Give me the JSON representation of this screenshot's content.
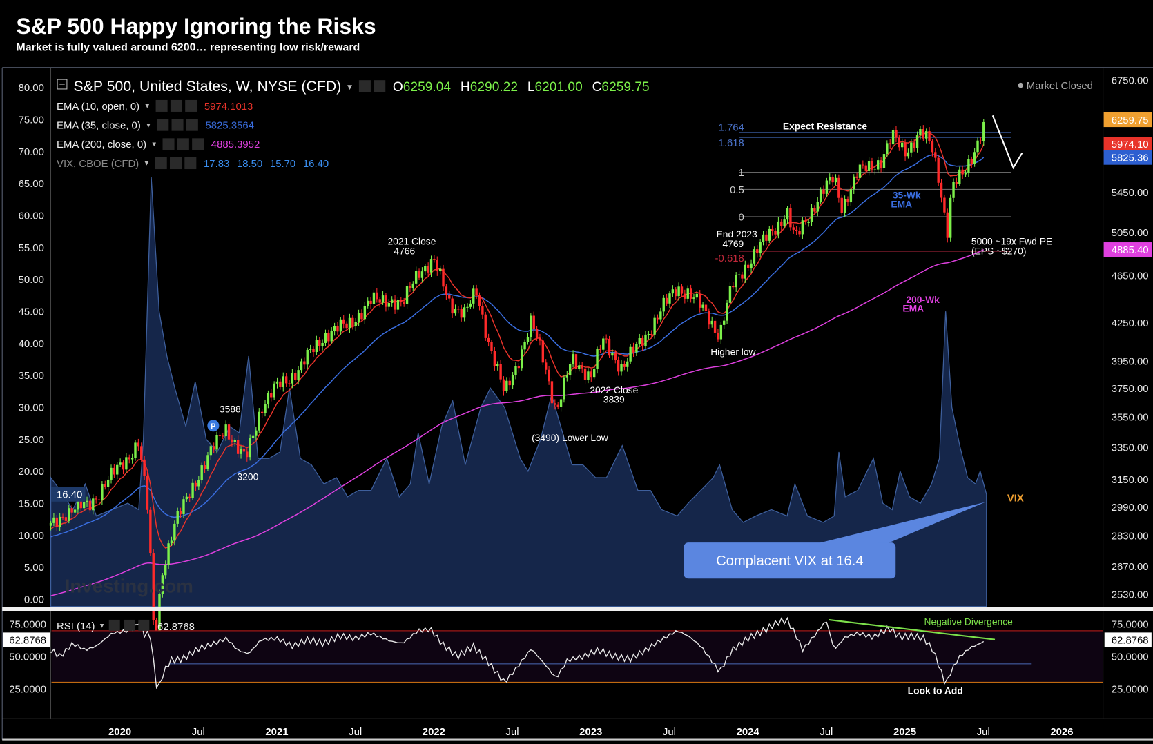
{
  "header": {
    "title": "S&P 500 Happy Ignoring the Risks",
    "subtitle": "Market is fully valued around 6200… representing low risk/reward"
  },
  "legend": {
    "symbol": "S&P 500, United States, W, NYSE (CFD)",
    "ohlc": {
      "o_label": "O",
      "o": "6259.04",
      "h_label": "H",
      "h": "6290.22",
      "l_label": "L",
      "l": "6201.00",
      "c_label": "C",
      "c": "6259.75"
    },
    "indicators": [
      {
        "label": "EMA (10, open, 0)",
        "value": "5974.1013",
        "color": "#e8332a"
      },
      {
        "label": "EMA (35, close, 0)",
        "value": "5825.3564",
        "color": "#3a6ee0"
      },
      {
        "label": "EMA (200, close, 0)",
        "value": "4885.3952",
        "color": "#e040e0"
      }
    ],
    "vix": {
      "label": "VIX, CBOE (CFD)",
      "values": [
        "17.83",
        "18.50",
        "15.70",
        "16.40"
      ]
    },
    "market_status": "Market Closed",
    "rsi_label": "RSI (14)",
    "rsi_value": "62.8768"
  },
  "chart_data": {
    "type": "candlestick",
    "title": "S&P 500 Happy Ignoring the Risks",
    "x_ticks": [
      {
        "t": 2020.0,
        "label": "2020",
        "major": true
      },
      {
        "t": 2020.5,
        "label": "Jul",
        "major": false
      },
      {
        "t": 2021.0,
        "label": "2021",
        "major": true
      },
      {
        "t": 2021.5,
        "label": "Jul",
        "major": false
      },
      {
        "t": 2022.0,
        "label": "2022",
        "major": true
      },
      {
        "t": 2022.5,
        "label": "Jul",
        "major": false
      },
      {
        "t": 2023.0,
        "label": "2023",
        "major": true
      },
      {
        "t": 2023.5,
        "label": "Jul",
        "major": false
      },
      {
        "t": 2024.0,
        "label": "2024",
        "major": true
      },
      {
        "t": 2024.5,
        "label": "Jul",
        "major": false
      },
      {
        "t": 2025.0,
        "label": "2025",
        "major": true
      },
      {
        "t": 2025.5,
        "label": "Jul",
        "major": false
      },
      {
        "t": 2026.0,
        "label": "2026",
        "major": true
      }
    ],
    "price_axis": {
      "scale": "log",
      "range": [
        2460,
        6800
      ],
      "ticks": [
        "6750.00",
        "5450.00",
        "5050.00",
        "4650.00",
        "4250.00",
        "3950.00",
        "3750.00",
        "3550.00",
        "3350.00",
        "3150.00",
        "2990.00",
        "2830.00",
        "2670.00",
        "2530.00"
      ]
    },
    "price_markers": [
      {
        "value": "6259.75",
        "color": "#f0a030"
      },
      {
        "value": "5974.10",
        "color": "#e8332a"
      },
      {
        "value": "5825.36",
        "color": "#2d5fd0"
      },
      {
        "value": "4885.40",
        "color": "#e040e0"
      }
    ],
    "vix_axis": {
      "range": [
        0,
        80
      ],
      "ticks": [
        "80.00",
        "75.00",
        "70.00",
        "65.00",
        "60.00",
        "55.00",
        "50.00",
        "45.00",
        "40.00",
        "35.00",
        "30.00",
        "25.00",
        "20.00",
        "15.00",
        "10.00",
        "5.00",
        "0.00"
      ],
      "marker": "16.40"
    },
    "rsi_axis": {
      "range": [
        15,
        85
      ],
      "ticks": [
        "75.0000",
        "50.0000",
        "25.0000"
      ],
      "marker": "62.8768",
      "overbought": 70,
      "oversold": 30
    },
    "price_path": [
      [
        2019.56,
        2880
      ],
      [
        2019.65,
        2960
      ],
      [
        2019.8,
        3000
      ],
      [
        2020.0,
        3230
      ],
      [
        2020.12,
        3380
      ],
      [
        2020.18,
        2950
      ],
      [
        2020.22,
        2300
      ],
      [
        2020.27,
        2650
      ],
      [
        2020.35,
        2880
      ],
      [
        2020.45,
        3100
      ],
      [
        2020.55,
        3250
      ],
      [
        2020.67,
        3500
      ],
      [
        2020.75,
        3330
      ],
      [
        2020.8,
        3270
      ],
      [
        2020.9,
        3620
      ],
      [
        2021.0,
        3756
      ],
      [
        2021.15,
        3900
      ],
      [
        2021.3,
        4150
      ],
      [
        2021.45,
        4230
      ],
      [
        2021.6,
        4420
      ],
      [
        2021.72,
        4450
      ],
      [
        2021.8,
        4380
      ],
      [
        2021.9,
        4700
      ],
      [
        2022.0,
        4766
      ],
      [
        2022.1,
        4420
      ],
      [
        2022.2,
        4320
      ],
      [
        2022.27,
        4500
      ],
      [
        2022.35,
        4100
      ],
      [
        2022.45,
        3700
      ],
      [
        2022.52,
        3900
      ],
      [
        2022.62,
        4250
      ],
      [
        2022.7,
        3950
      ],
      [
        2022.78,
        3590
      ],
      [
        2022.88,
        3950
      ],
      [
        2022.95,
        3900
      ],
      [
        2023.0,
        3839
      ],
      [
        2023.08,
        4100
      ],
      [
        2023.2,
        3900
      ],
      [
        2023.35,
        4150
      ],
      [
        2023.55,
        4550
      ],
      [
        2023.62,
        4500
      ],
      [
        2023.75,
        4300
      ],
      [
        2023.82,
        4150
      ],
      [
        2023.9,
        4550
      ],
      [
        2024.0,
        4769
      ],
      [
        2024.15,
        5050
      ],
      [
        2024.25,
        5250
      ],
      [
        2024.3,
        4970
      ],
      [
        2024.45,
        5400
      ],
      [
        2024.55,
        5600
      ],
      [
        2024.6,
        5300
      ],
      [
        2024.7,
        5650
      ],
      [
        2024.85,
        5800
      ],
      [
        2024.92,
        6050
      ],
      [
        2025.0,
        5900
      ],
      [
        2025.1,
        6100
      ],
      [
        2025.17,
        5950
      ],
      [
        2025.22,
        5580
      ],
      [
        2025.27,
        5050
      ],
      [
        2025.3,
        5500
      ],
      [
        2025.38,
        5650
      ],
      [
        2025.45,
        5950
      ],
      [
        2025.5,
        6170
      ],
      [
        2025.52,
        6260
      ]
    ],
    "vix_path": [
      [
        2019.56,
        19
      ],
      [
        2019.62,
        17
      ],
      [
        2019.7,
        14
      ],
      [
        2019.78,
        18
      ],
      [
        2019.85,
        13
      ],
      [
        2019.95,
        14
      ],
      [
        2020.05,
        15
      ],
      [
        2020.12,
        14
      ],
      [
        2020.15,
        25
      ],
      [
        2020.2,
        66
      ],
      [
        2020.25,
        45
      ],
      [
        2020.3,
        38
      ],
      [
        2020.35,
        33
      ],
      [
        2020.42,
        27
      ],
      [
        2020.48,
        34
      ],
      [
        2020.55,
        25
      ],
      [
        2020.62,
        23
      ],
      [
        2020.7,
        27
      ],
      [
        2020.76,
        26
      ],
      [
        2020.82,
        38
      ],
      [
        2020.88,
        22
      ],
      [
        2020.95,
        22
      ],
      [
        2021.02,
        23
      ],
      [
        2021.08,
        33
      ],
      [
        2021.15,
        22
      ],
      [
        2021.22,
        21
      ],
      [
        2021.3,
        18
      ],
      [
        2021.38,
        19
      ],
      [
        2021.45,
        16
      ],
      [
        2021.52,
        17
      ],
      [
        2021.6,
        17
      ],
      [
        2021.7,
        22
      ],
      [
        2021.78,
        16
      ],
      [
        2021.85,
        18
      ],
      [
        2021.9,
        26
      ],
      [
        2021.97,
        18
      ],
      [
        2022.05,
        27
      ],
      [
        2022.12,
        31
      ],
      [
        2022.2,
        21
      ],
      [
        2022.3,
        30
      ],
      [
        2022.36,
        33
      ],
      [
        2022.45,
        30
      ],
      [
        2022.55,
        22
      ],
      [
        2022.6,
        20
      ],
      [
        2022.68,
        25
      ],
      [
        2022.75,
        32
      ],
      [
        2022.82,
        26
      ],
      [
        2022.88,
        21
      ],
      [
        2022.95,
        21
      ],
      [
        2023.03,
        19
      ],
      [
        2023.1,
        19
      ],
      [
        2023.2,
        24
      ],
      [
        2023.3,
        17
      ],
      [
        2023.38,
        17
      ],
      [
        2023.45,
        14
      ],
      [
        2023.55,
        13
      ],
      [
        2023.62,
        15
      ],
      [
        2023.7,
        17
      ],
      [
        2023.78,
        19
      ],
      [
        2023.82,
        21
      ],
      [
        2023.9,
        14
      ],
      [
        2023.97,
        12
      ],
      [
        2024.05,
        13
      ],
      [
        2024.15,
        14
      ],
      [
        2024.25,
        13
      ],
      [
        2024.3,
        18
      ],
      [
        2024.38,
        13
      ],
      [
        2024.48,
        12
      ],
      [
        2024.55,
        13
      ],
      [
        2024.58,
        23
      ],
      [
        2024.62,
        16
      ],
      [
        2024.7,
        17
      ],
      [
        2024.8,
        22
      ],
      [
        2024.86,
        15
      ],
      [
        2024.92,
        14
      ],
      [
        2024.97,
        20
      ],
      [
        2025.03,
        16
      ],
      [
        2025.1,
        15
      ],
      [
        2025.17,
        18
      ],
      [
        2025.22,
        22
      ],
      [
        2025.26,
        45
      ],
      [
        2025.3,
        30
      ],
      [
        2025.35,
        24
      ],
      [
        2025.4,
        19
      ],
      [
        2025.45,
        18
      ],
      [
        2025.48,
        20
      ],
      [
        2025.52,
        16.4
      ]
    ],
    "rsi_path": [
      [
        2019.56,
        55
      ],
      [
        2019.62,
        50
      ],
      [
        2019.7,
        60
      ],
      [
        2019.78,
        55
      ],
      [
        2019.85,
        58
      ],
      [
        2019.95,
        68
      ],
      [
        2020.05,
        70
      ],
      [
        2020.1,
        73
      ],
      [
        2020.13,
        79
      ],
      [
        2020.16,
        65
      ],
      [
        2020.19,
        70
      ],
      [
        2020.22,
        40
      ],
      [
        2020.24,
        22
      ],
      [
        2020.27,
        35
      ],
      [
        2020.32,
        47
      ],
      [
        2020.4,
        48
      ],
      [
        2020.5,
        56
      ],
      [
        2020.6,
        60
      ],
      [
        2020.68,
        64
      ],
      [
        2020.75,
        55
      ],
      [
        2020.82,
        52
      ],
      [
        2020.9,
        63
      ],
      [
        2021.0,
        64
      ],
      [
        2021.1,
        58
      ],
      [
        2021.2,
        63
      ],
      [
        2021.3,
        60
      ],
      [
        2021.4,
        66
      ],
      [
        2021.5,
        64
      ],
      [
        2021.6,
        68
      ],
      [
        2021.72,
        62
      ],
      [
        2021.8,
        60
      ],
      [
        2021.9,
        70
      ],
      [
        2021.98,
        71
      ],
      [
        2022.05,
        60
      ],
      [
        2022.15,
        50
      ],
      [
        2022.25,
        58
      ],
      [
        2022.35,
        45
      ],
      [
        2022.45,
        30
      ],
      [
        2022.52,
        40
      ],
      [
        2022.62,
        56
      ],
      [
        2022.7,
        45
      ],
      [
        2022.78,
        33
      ],
      [
        2022.85,
        47
      ],
      [
        2022.95,
        50
      ],
      [
        2023.05,
        55
      ],
      [
        2023.15,
        50
      ],
      [
        2023.25,
        48
      ],
      [
        2023.35,
        55
      ],
      [
        2023.45,
        63
      ],
      [
        2023.55,
        70
      ],
      [
        2023.62,
        66
      ],
      [
        2023.7,
        58
      ],
      [
        2023.78,
        45
      ],
      [
        2023.82,
        38
      ],
      [
        2023.9,
        55
      ],
      [
        2024.0,
        64
      ],
      [
        2024.1,
        70
      ],
      [
        2024.2,
        77
      ],
      [
        2024.25,
        78
      ],
      [
        2024.3,
        68
      ],
      [
        2024.35,
        55
      ],
      [
        2024.45,
        70
      ],
      [
        2024.5,
        78
      ],
      [
        2024.55,
        55
      ],
      [
        2024.62,
        65
      ],
      [
        2024.7,
        68
      ],
      [
        2024.8,
        65
      ],
      [
        2024.9,
        72
      ],
      [
        2024.97,
        65
      ],
      [
        2025.05,
        66
      ],
      [
        2025.12,
        64
      ],
      [
        2025.18,
        55
      ],
      [
        2025.22,
        42
      ],
      [
        2025.26,
        28
      ],
      [
        2025.3,
        40
      ],
      [
        2025.35,
        50
      ],
      [
        2025.42,
        57
      ],
      [
        2025.48,
        60
      ],
      [
        2025.52,
        62.9
      ]
    ],
    "ema10_last": 5974.1,
    "ema35_last": 5825.36,
    "ema200_last": 4885.4,
    "fib_levels": [
      {
        "label": "1.764",
        "price": 6110,
        "color": "#4a72c8"
      },
      {
        "label": "1.618",
        "price": 6051,
        "color": "#4a72c8"
      },
      {
        "label": "1",
        "price": 5662,
        "color": "#cfcfcf"
      },
      {
        "label": "0.5",
        "price": 5480,
        "color": "#cfcfcf"
      },
      {
        "label": "0",
        "price": 5202,
        "color": "#cfcfcf"
      },
      {
        "label": "-0.618",
        "price": 4870,
        "color": "#c0283a"
      }
    ],
    "annotations": {
      "close_2021": [
        "2021 Close",
        "4766"
      ],
      "end_2023": [
        "End 2023",
        "4769"
      ],
      "higher_low": "Higher low",
      "close_2022": [
        "2022 Close",
        "3839"
      ],
      "lower_low": "(3490) Lower Low",
      "high_3588": "3588",
      "low_3200": "3200",
      "resistance": "Expect Resistance",
      "ema35": [
        "35-Wk",
        "EMA"
      ],
      "ema200": [
        "200-Wk",
        "EMA"
      ],
      "pe": [
        "5000 ~19x Fwd PE",
        "(EPS ~$270)"
      ],
      "vix_label": "VIX",
      "callout": "Complacent VIX at 16.4",
      "divergence": "Negative Divergence",
      "look_to_add": "Look to Add",
      "p_badge": "P",
      "watermark": "Investing.com"
    }
  }
}
